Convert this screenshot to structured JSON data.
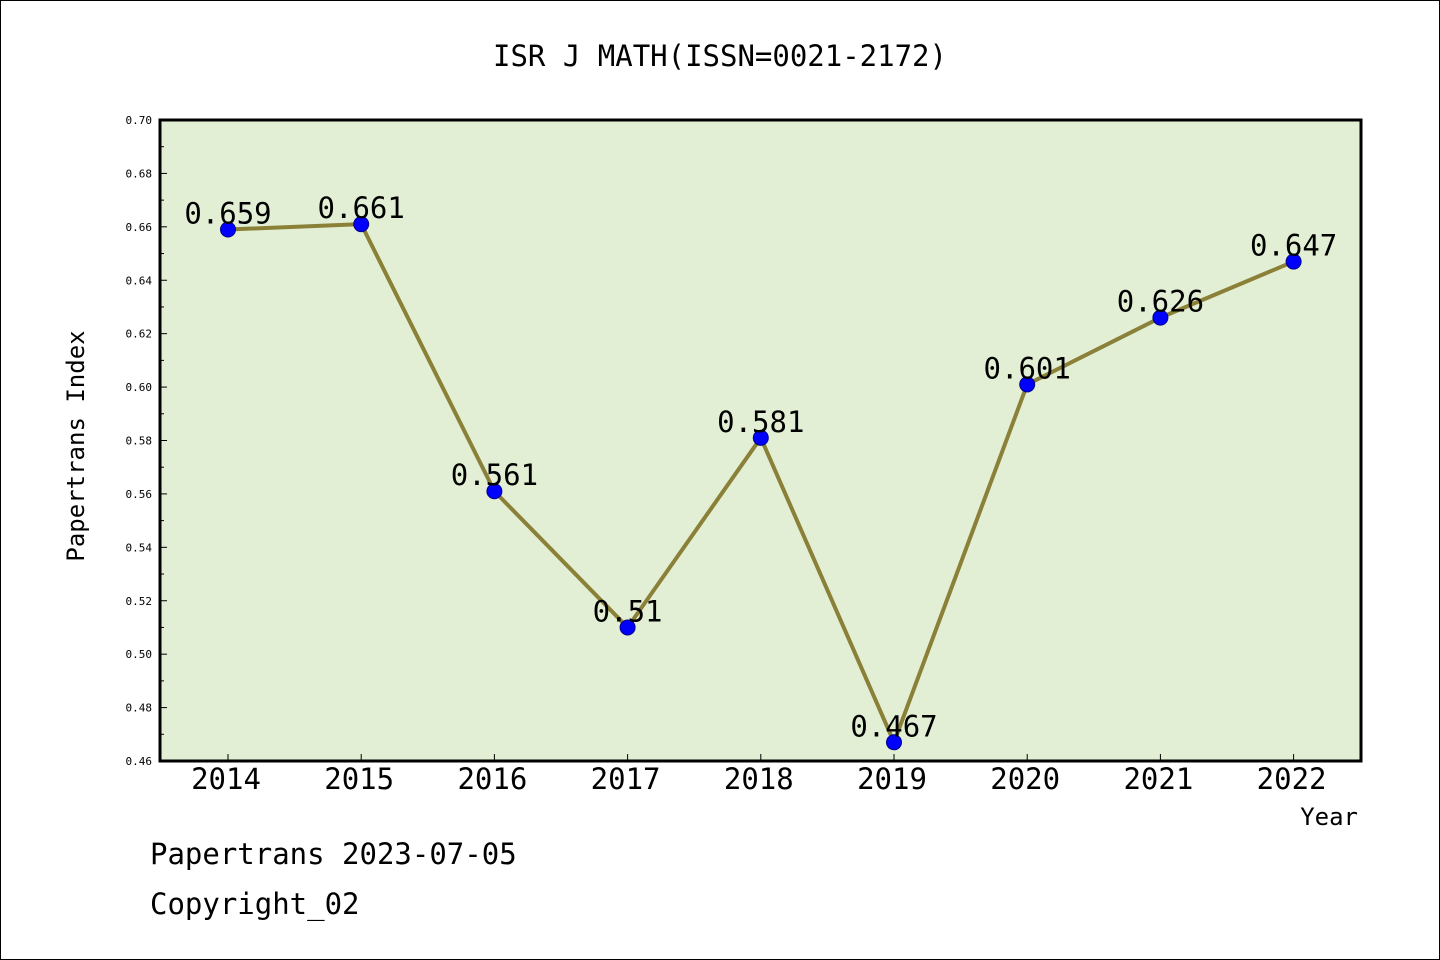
{
  "chart_data": {
    "type": "line",
    "title": "ISR J MATH(ISSN=0021-2172)",
    "xlabel": "Year",
    "ylabel": "Papertrans Index",
    "categories": [
      "2014",
      "2015",
      "2016",
      "2017",
      "2018",
      "2019",
      "2020",
      "2021",
      "2022"
    ],
    "series": [
      {
        "values": [
          0.659,
          0.661,
          0.561,
          0.51,
          0.581,
          0.467,
          0.601,
          0.626,
          0.647
        ],
        "data_labels": [
          "0.659",
          "0.661",
          "0.561",
          "0.51",
          "0.581",
          "0.467",
          "0.601",
          "0.626",
          "0.647"
        ]
      }
    ],
    "ylim": [
      0.46,
      0.7
    ],
    "yticks": [
      "0.46",
      "0.48",
      "0.50",
      "0.52",
      "0.54",
      "0.56",
      "0.58",
      "0.60",
      "0.62",
      "0.64",
      "0.66",
      "0.68",
      "0.70"
    ],
    "grid": false,
    "legend": "none"
  },
  "footer": {
    "line1": "Papertrans 2023-07-05",
    "line2": "Copyright_02"
  },
  "colors": {
    "plot_background": "#e2efd4",
    "line": "#8b8038",
    "marker": "#0000ff"
  }
}
